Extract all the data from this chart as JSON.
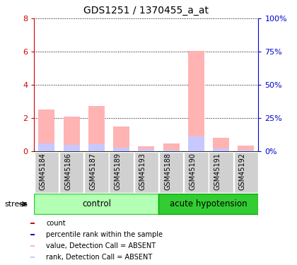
{
  "title": "GDS1251 / 1370455_a_at",
  "samples": [
    "GSM45184",
    "GSM45186",
    "GSM45187",
    "GSM45189",
    "GSM45193",
    "GSM45188",
    "GSM45190",
    "GSM45191",
    "GSM45192"
  ],
  "n_control": 5,
  "n_acute": 4,
  "value_absent": [
    2.5,
    2.1,
    2.7,
    1.5,
    0.3,
    0.45,
    6.05,
    0.8,
    0.35
  ],
  "rank_absent": [
    0.45,
    0.38,
    0.42,
    0.2,
    0.1,
    0.08,
    0.9,
    0.18,
    0.06
  ],
  "ylim": [
    0,
    8
  ],
  "ylim2": [
    0,
    100
  ],
  "yticks_left": [
    0,
    2,
    4,
    6,
    8
  ],
  "yticks_right": [
    0,
    25,
    50,
    75,
    100
  ],
  "ytick_labels_right": [
    "0%",
    "25%",
    "50%",
    "75%",
    "100%"
  ],
  "color_value_absent": "#ffb3b3",
  "color_rank_absent": "#c8c8ff",
  "color_count": "#cc0000",
  "color_rank": "#0000cc",
  "color_control_light": "#b3ffb3",
  "color_control_dark": "#33cc33",
  "color_acute_light": "#33cc33",
  "color_acute_dark": "#00aa00",
  "color_tickbox": "#d0d0d0",
  "bar_width": 0.65,
  "left_yaxis_color": "#cc0000",
  "right_yaxis_color": "#0000cc",
  "stress_label": "stress",
  "group_label_control": "control",
  "group_label_acute": "acute hypotension",
  "legend_items": [
    {
      "color": "#cc0000",
      "label": "count"
    },
    {
      "color": "#0000cc",
      "label": "percentile rank within the sample"
    },
    {
      "color": "#ffb3b3",
      "label": "value, Detection Call = ABSENT"
    },
    {
      "color": "#c8c8ff",
      "label": "rank, Detection Call = ABSENT"
    }
  ]
}
